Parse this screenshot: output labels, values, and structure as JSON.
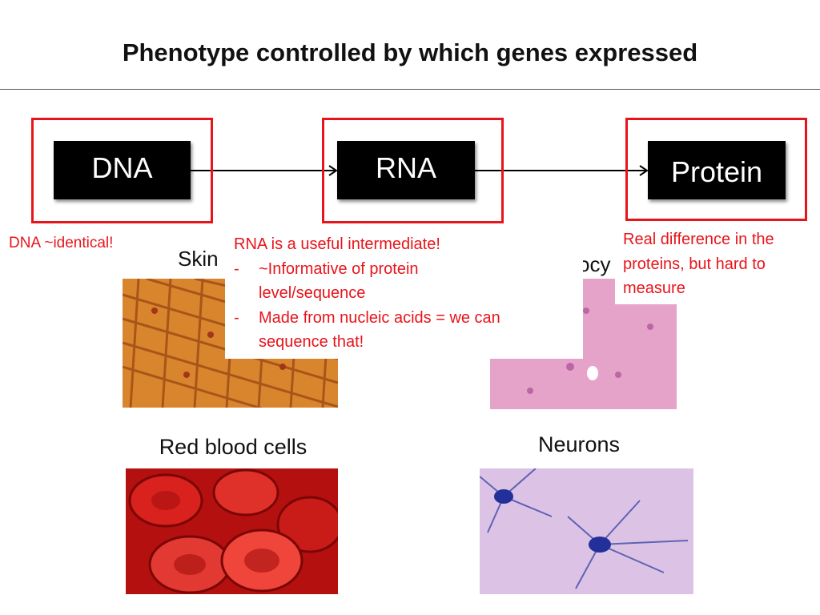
{
  "header": {
    "title": "Phenotype controlled by which genes expressed"
  },
  "flow": {
    "nodes": [
      {
        "label": "DNA"
      },
      {
        "label": "RNA"
      },
      {
        "label": "Protein"
      }
    ]
  },
  "annotations": {
    "dna": "DNA ~identical!",
    "rna": {
      "heading": "RNA is a useful intermediate!",
      "bullets": [
        "~Informative of protein level/sequence",
        "Made from nucleic acids = we can sequence that!"
      ]
    },
    "protein": "Real difference in the proteins, but hard to measure"
  },
  "cells": [
    {
      "label": "Skin"
    },
    {
      "label": "ocy"
    },
    {
      "label": "Red blood cells"
    },
    {
      "label": "Neurons"
    }
  ]
}
